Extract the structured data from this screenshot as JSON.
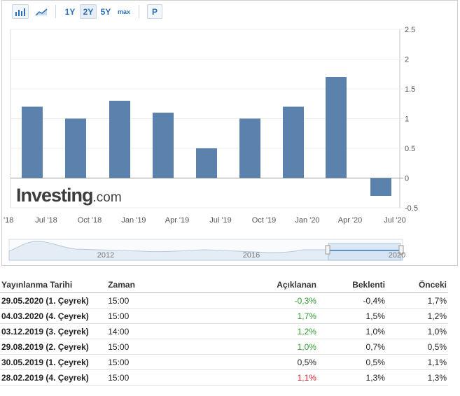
{
  "toolbar": {
    "ranges": [
      "1Y",
      "2Y",
      "5Y",
      "max"
    ],
    "active_range": "2Y",
    "p_label": "P"
  },
  "brand": {
    "name": "Investing",
    "suffix": ".com"
  },
  "chart_data": {
    "type": "bar",
    "categories": [
      "Jul '18",
      "Oct '18",
      "Jan '19",
      "Apr '19",
      "Jul '19",
      "Oct '19",
      "Jan '20",
      "Apr '20",
      "Jul '20"
    ],
    "values": [
      1.2,
      1.0,
      1.3,
      1.1,
      0.5,
      1.0,
      1.2,
      1.7,
      -0.3
    ],
    "x_tick_labels": [
      "'18",
      "Jul '18",
      "Oct '18",
      "Jan '19",
      "Apr '19",
      "Jul '19",
      "Oct '19",
      "Jan '20",
      "Apr '20",
      "Jul '20"
    ],
    "y_ticks": [
      "2.5",
      "2",
      "1.5",
      "1",
      "0.5",
      "0",
      "-0.5"
    ],
    "ylim": [
      -0.5,
      2.5
    ],
    "bar_color": "#5b82ad",
    "grid": true,
    "y_axis_side": "right",
    "navigator_labels": [
      "2012",
      "2016",
      "2020"
    ]
  },
  "table": {
    "headers": [
      "Yayınlanma Tarihi",
      "Zaman",
      "Açıklanan",
      "Beklenti",
      "Önceki"
    ],
    "rows": [
      {
        "date": "29.05.2020 (1. Çeyrek)",
        "time": "15:00",
        "actual": "-0,3%",
        "actual_status": "pos",
        "forecast": "-0,4%",
        "previous": "1,7%"
      },
      {
        "date": "04.03.2020 (4. Çeyrek)",
        "time": "15:00",
        "actual": "1,7%",
        "actual_status": "pos",
        "forecast": "1,5%",
        "previous": "1,2%"
      },
      {
        "date": "03.12.2019 (3. Çeyrek)",
        "time": "14:00",
        "actual": "1,2%",
        "actual_status": "pos",
        "forecast": "1,0%",
        "previous": "1,0%"
      },
      {
        "date": "29.08.2019 (2. Çeyrek)",
        "time": "15:00",
        "actual": "1,0%",
        "actual_status": "pos",
        "forecast": "0,7%",
        "previous": "0,5%"
      },
      {
        "date": "30.05.2019 (1. Çeyrek)",
        "time": "15:00",
        "actual": "0,5%",
        "actual_status": "neu",
        "forecast": "0,5%",
        "previous": "1,1%"
      },
      {
        "date": "28.02.2019 (4. Çeyrek)",
        "time": "15:00",
        "actual": "1,1%",
        "actual_status": "neg",
        "forecast": "1,3%",
        "previous": "1,3%"
      }
    ]
  }
}
